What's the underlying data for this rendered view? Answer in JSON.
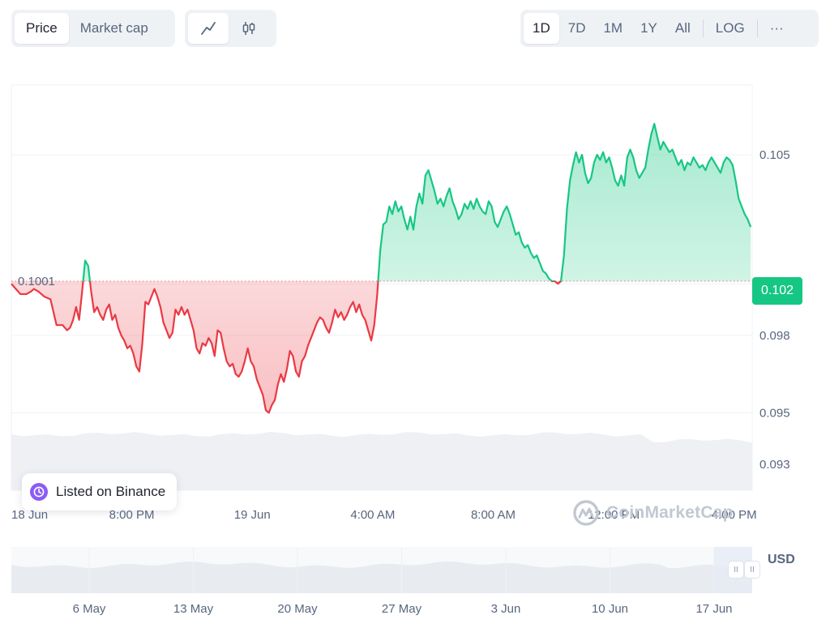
{
  "toolbar": {
    "metric_tabs": [
      {
        "label": "Price",
        "active": true
      },
      {
        "label": "Market cap",
        "active": false
      }
    ],
    "chart_types": [
      {
        "icon": "line-chart-icon",
        "active": true
      },
      {
        "icon": "candlestick-icon",
        "active": false
      }
    ],
    "ranges": [
      {
        "label": "1D",
        "active": true
      },
      {
        "label": "7D",
        "active": false
      },
      {
        "label": "1M",
        "active": false
      },
      {
        "label": "1Y",
        "active": false
      },
      {
        "label": "All",
        "active": false
      }
    ],
    "log_label": "LOG",
    "more_label": "···"
  },
  "chart_data": {
    "type": "line",
    "title": "",
    "xlabel": "",
    "ylabel": "",
    "unit": "USD",
    "baseline": 0.1001,
    "baseline_label": "0.1001",
    "current_price": "0.102",
    "ylim": [
      0.092,
      0.1077
    ],
    "y_ticks": [
      {
        "label": "0.093",
        "value": 0.093
      },
      {
        "label": "0.095",
        "value": 0.095
      },
      {
        "label": "0.098",
        "value": 0.098
      },
      {
        "label": "0.100",
        "value": 0.1
      },
      {
        "label": "0.105",
        "value": 0.105
      }
    ],
    "x_ticks": [
      {
        "label": "18 Jun",
        "h": 0
      },
      {
        "label": "8:00 PM",
        "h": 4
      },
      {
        "label": "19 Jun",
        "h": 8
      },
      {
        "label": "4:00 AM",
        "h": 12
      },
      {
        "label": "8:00 AM",
        "h": 16
      },
      {
        "label": "12:00 PM",
        "h": 20
      },
      {
        "label": "4:00 PM",
        "h": 24
      }
    ],
    "x_range_h": [
      0,
      24.6
    ],
    "grid": true,
    "colors": {
      "up": "#16c784",
      "down": "#ea3943",
      "up_fill": "#16c784",
      "down_fill": "#ea3943"
    },
    "series": [
      {
        "points": [
          [
            0.0,
            0.1
          ],
          [
            0.3,
            0.0996
          ],
          [
            0.5,
            0.0996
          ],
          [
            0.65,
            0.0997
          ],
          [
            0.75,
            0.0998
          ],
          [
            0.9,
            0.0997
          ],
          [
            1.1,
            0.0995
          ],
          [
            1.3,
            0.0994
          ],
          [
            1.5,
            0.0984
          ],
          [
            1.7,
            0.0984
          ],
          [
            1.85,
            0.0982
          ],
          [
            1.95,
            0.0983
          ],
          [
            2.05,
            0.0986
          ],
          [
            2.15,
            0.0991
          ],
          [
            2.25,
            0.0986
          ],
          [
            2.35,
            0.0997
          ],
          [
            2.45,
            0.1009
          ],
          [
            2.55,
            0.1007
          ],
          [
            2.65,
            0.0997
          ],
          [
            2.75,
            0.0989
          ],
          [
            2.85,
            0.0991
          ],
          [
            2.95,
            0.0988
          ],
          [
            3.05,
            0.0986
          ],
          [
            3.15,
            0.099
          ],
          [
            3.25,
            0.0992
          ],
          [
            3.35,
            0.0986
          ],
          [
            3.45,
            0.0988
          ],
          [
            3.55,
            0.0983
          ],
          [
            3.65,
            0.098
          ],
          [
            3.75,
            0.0978
          ],
          [
            3.85,
            0.0975
          ],
          [
            3.95,
            0.0976
          ],
          [
            4.05,
            0.0973
          ],
          [
            4.15,
            0.0968
          ],
          [
            4.25,
            0.0966
          ],
          [
            4.35,
            0.0977
          ],
          [
            4.45,
            0.0993
          ],
          [
            4.55,
            0.0992
          ],
          [
            4.65,
            0.0995
          ],
          [
            4.75,
            0.0998
          ],
          [
            4.85,
            0.0995
          ],
          [
            4.95,
            0.0991
          ],
          [
            5.05,
            0.0985
          ],
          [
            5.15,
            0.0982
          ],
          [
            5.25,
            0.0979
          ],
          [
            5.35,
            0.0981
          ],
          [
            5.45,
            0.099
          ],
          [
            5.55,
            0.0988
          ],
          [
            5.65,
            0.0991
          ],
          [
            5.75,
            0.0988
          ],
          [
            5.85,
            0.099
          ],
          [
            5.95,
            0.0986
          ],
          [
            6.05,
            0.0982
          ],
          [
            6.15,
            0.0975
          ],
          [
            6.25,
            0.0973
          ],
          [
            6.35,
            0.0977
          ],
          [
            6.45,
            0.0976
          ],
          [
            6.55,
            0.0979
          ],
          [
            6.65,
            0.0977
          ],
          [
            6.75,
            0.0972
          ],
          [
            6.85,
            0.0982
          ],
          [
            6.95,
            0.0981
          ],
          [
            7.05,
            0.0975
          ],
          [
            7.15,
            0.097
          ],
          [
            7.25,
            0.0968
          ],
          [
            7.35,
            0.0969
          ],
          [
            7.45,
            0.0965
          ],
          [
            7.55,
            0.0964
          ],
          [
            7.65,
            0.0966
          ],
          [
            7.75,
            0.097
          ],
          [
            7.85,
            0.0975
          ],
          [
            7.95,
            0.097
          ],
          [
            8.05,
            0.0968
          ],
          [
            8.15,
            0.0963
          ],
          [
            8.25,
            0.096
          ],
          [
            8.35,
            0.0957
          ],
          [
            8.45,
            0.0951
          ],
          [
            8.55,
            0.095
          ],
          [
            8.65,
            0.0953
          ],
          [
            8.75,
            0.0955
          ],
          [
            8.85,
            0.0961
          ],
          [
            8.95,
            0.0965
          ],
          [
            9.05,
            0.0962
          ],
          [
            9.15,
            0.0967
          ],
          [
            9.25,
            0.0974
          ],
          [
            9.35,
            0.0972
          ],
          [
            9.45,
            0.0966
          ],
          [
            9.55,
            0.0964
          ],
          [
            9.65,
            0.097
          ],
          [
            9.75,
            0.0972
          ],
          [
            9.85,
            0.0976
          ],
          [
            9.95,
            0.0979
          ],
          [
            10.05,
            0.0982
          ],
          [
            10.15,
            0.0985
          ],
          [
            10.25,
            0.0987
          ],
          [
            10.35,
            0.0986
          ],
          [
            10.45,
            0.0983
          ],
          [
            10.55,
            0.0981
          ],
          [
            10.65,
            0.0985
          ],
          [
            10.75,
            0.099
          ],
          [
            10.85,
            0.0987
          ],
          [
            10.95,
            0.0989
          ],
          [
            11.05,
            0.0986
          ],
          [
            11.15,
            0.0988
          ],
          [
            11.25,
            0.0991
          ],
          [
            11.35,
            0.0993
          ],
          [
            11.45,
            0.0989
          ],
          [
            11.55,
            0.0992
          ],
          [
            11.65,
            0.0988
          ],
          [
            11.75,
            0.0986
          ],
          [
            11.85,
            0.0982
          ],
          [
            11.95,
            0.0978
          ],
          [
            12.05,
            0.0984
          ],
          [
            12.15,
            0.0996
          ],
          [
            12.25,
            0.1013
          ],
          [
            12.35,
            0.1023
          ],
          [
            12.45,
            0.1024
          ],
          [
            12.55,
            0.103
          ],
          [
            12.65,
            0.1027
          ],
          [
            12.75,
            0.1032
          ],
          [
            12.85,
            0.1028
          ],
          [
            12.95,
            0.103
          ],
          [
            13.05,
            0.1025
          ],
          [
            13.15,
            0.1021
          ],
          [
            13.25,
            0.1026
          ],
          [
            13.35,
            0.1021
          ],
          [
            13.45,
            0.103
          ],
          [
            13.55,
            0.1035
          ],
          [
            13.65,
            0.1031
          ],
          [
            13.75,
            0.1042
          ],
          [
            13.85,
            0.1044
          ],
          [
            13.95,
            0.104
          ],
          [
            14.05,
            0.1036
          ],
          [
            14.15,
            0.1031
          ],
          [
            14.25,
            0.1033
          ],
          [
            14.35,
            0.103
          ],
          [
            14.45,
            0.1034
          ],
          [
            14.55,
            0.1037
          ],
          [
            14.65,
            0.1032
          ],
          [
            14.75,
            0.1029
          ],
          [
            14.85,
            0.1025
          ],
          [
            14.95,
            0.1027
          ],
          [
            15.05,
            0.1031
          ],
          [
            15.15,
            0.1029
          ],
          [
            15.25,
            0.1032
          ],
          [
            15.35,
            0.1029
          ],
          [
            15.45,
            0.1033
          ],
          [
            15.55,
            0.103
          ],
          [
            15.65,
            0.1028
          ],
          [
            15.75,
            0.1027
          ],
          [
            15.85,
            0.1032
          ],
          [
            15.95,
            0.103
          ],
          [
            16.05,
            0.1024
          ],
          [
            16.15,
            0.1022
          ],
          [
            16.25,
            0.1025
          ],
          [
            16.35,
            0.1028
          ],
          [
            16.45,
            0.103
          ],
          [
            16.55,
            0.1027
          ],
          [
            16.65,
            0.1023
          ],
          [
            16.75,
            0.1019
          ],
          [
            16.85,
            0.102
          ],
          [
            16.95,
            0.1016
          ],
          [
            17.05,
            0.1014
          ],
          [
            17.15,
            0.1015
          ],
          [
            17.25,
            0.1012
          ],
          [
            17.35,
            0.101
          ],
          [
            17.45,
            0.1011
          ],
          [
            17.55,
            0.1008
          ],
          [
            17.65,
            0.1005
          ],
          [
            17.75,
            0.1004
          ],
          [
            17.85,
            0.1002
          ],
          [
            17.95,
            0.1001
          ],
          [
            18.05,
            0.1001
          ],
          [
            18.15,
            0.1
          ],
          [
            18.25,
            0.1001
          ],
          [
            18.35,
            0.1011
          ],
          [
            18.45,
            0.1029
          ],
          [
            18.55,
            0.104
          ],
          [
            18.65,
            0.1046
          ],
          [
            18.75,
            0.1051
          ],
          [
            18.85,
            0.1047
          ],
          [
            18.95,
            0.105
          ],
          [
            19.05,
            0.1043
          ],
          [
            19.15,
            0.1039
          ],
          [
            19.25,
            0.1041
          ],
          [
            19.35,
            0.1047
          ],
          [
            19.45,
            0.105
          ],
          [
            19.55,
            0.1048
          ],
          [
            19.65,
            0.1051
          ],
          [
            19.75,
            0.1047
          ],
          [
            19.85,
            0.1049
          ],
          [
            19.95,
            0.1045
          ],
          [
            20.05,
            0.104
          ],
          [
            20.15,
            0.1038
          ],
          [
            20.25,
            0.1042
          ],
          [
            20.35,
            0.1038
          ],
          [
            20.45,
            0.1049
          ],
          [
            20.55,
            0.1052
          ],
          [
            20.65,
            0.1049
          ],
          [
            20.75,
            0.1044
          ],
          [
            20.85,
            0.1041
          ],
          [
            20.95,
            0.1043
          ],
          [
            21.05,
            0.1045
          ],
          [
            21.15,
            0.1052
          ],
          [
            21.25,
            0.1058
          ],
          [
            21.35,
            0.1062
          ],
          [
            21.45,
            0.1057
          ],
          [
            21.55,
            0.1052
          ],
          [
            21.65,
            0.1055
          ],
          [
            21.75,
            0.1053
          ],
          [
            21.85,
            0.1051
          ],
          [
            21.95,
            0.1052
          ],
          [
            22.05,
            0.1049
          ],
          [
            22.15,
            0.1046
          ],
          [
            22.25,
            0.1048
          ],
          [
            22.35,
            0.1044
          ],
          [
            22.45,
            0.1047
          ],
          [
            22.55,
            0.1046
          ],
          [
            22.65,
            0.1049
          ],
          [
            22.75,
            0.1047
          ],
          [
            22.85,
            0.1045
          ],
          [
            22.95,
            0.1046
          ],
          [
            23.05,
            0.1044
          ],
          [
            23.15,
            0.1047
          ],
          [
            23.25,
            0.1049
          ],
          [
            23.35,
            0.1047
          ],
          [
            23.45,
            0.1045
          ],
          [
            23.55,
            0.1043
          ],
          [
            23.65,
            0.1047
          ],
          [
            23.75,
            0.1049
          ],
          [
            23.85,
            0.1048
          ],
          [
            23.95,
            0.1046
          ],
          [
            24.05,
            0.104
          ],
          [
            24.15,
            0.1033
          ],
          [
            24.25,
            0.103
          ],
          [
            24.35,
            0.1027
          ],
          [
            24.45,
            0.1025
          ],
          [
            24.55,
            0.1022
          ]
        ]
      }
    ]
  },
  "badges": {
    "listed_label": "Listed on Binance",
    "watermark": "CoinMarketCap",
    "currency": "USD"
  },
  "navigator": {
    "labels": [
      "6 May",
      "13 May",
      "20 May",
      "27 May",
      "3 Jun",
      "10 Jun",
      "17 Jun"
    ],
    "handle_glyph": "II"
  }
}
